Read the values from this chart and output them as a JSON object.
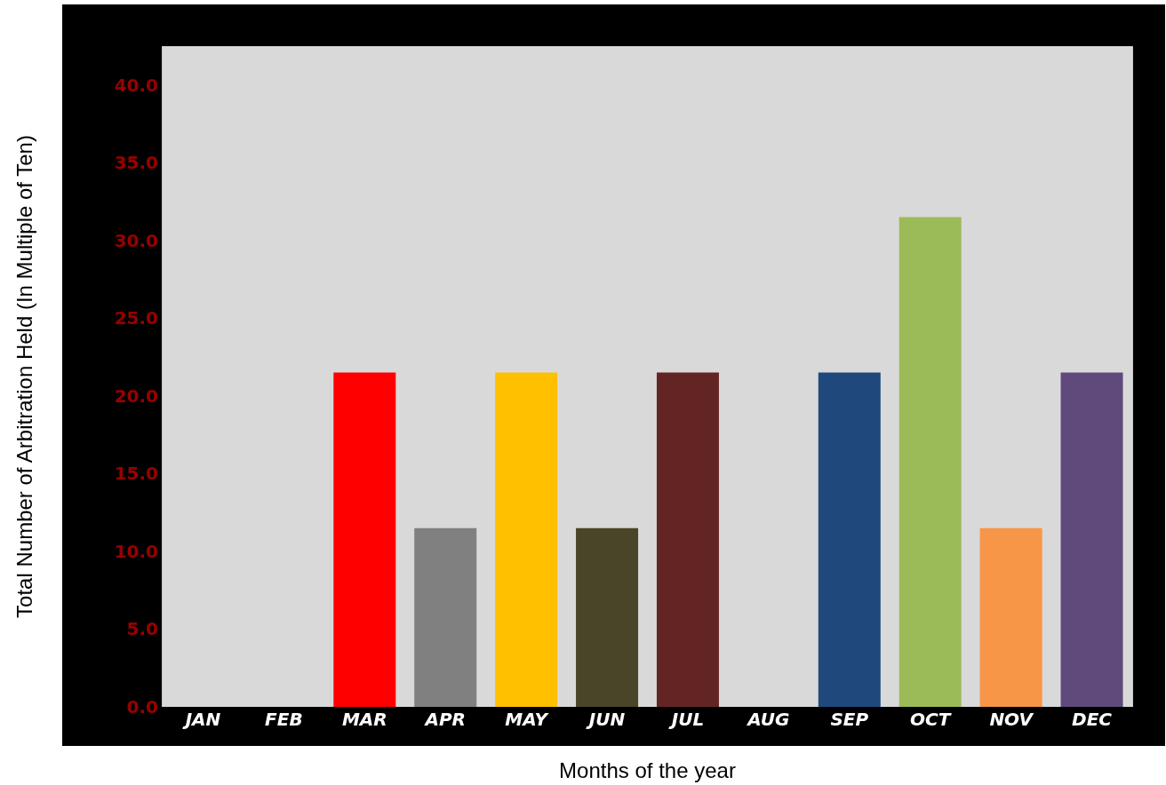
{
  "chart_data": {
    "type": "bar",
    "xlabel": "Months of the year",
    "ylabel": "Total Number of Arbitration Held (In Multiple of Ten)",
    "categories": [
      "JAN",
      "FEB",
      "MAR",
      "APR",
      "MAY",
      "JUN",
      "JUL",
      "AUG",
      "SEP",
      "OCT",
      "NOV",
      "DEC"
    ],
    "values": [
      0,
      0,
      21.5,
      11.5,
      21.5,
      11.5,
      21.5,
      0,
      21.5,
      31.5,
      11.5,
      21.5
    ],
    "colors": [
      "#d9d9d9",
      "#d9d9d9",
      "#ff0000",
      "#808080",
      "#ffc000",
      "#4a4529",
      "#632523",
      "#d9d9d9",
      "#1f497d",
      "#9bbb59",
      "#f79646",
      "#604a7b"
    ],
    "ylim": [
      0,
      42.5
    ],
    "yticks": [
      {
        "value": 0,
        "label": "0.0"
      },
      {
        "value": 5,
        "label": "5.0"
      },
      {
        "value": 10,
        "label": "10.0"
      },
      {
        "value": 15,
        "label": "15.0"
      },
      {
        "value": 20,
        "label": "20.0"
      },
      {
        "value": 25,
        "label": "25.0"
      },
      {
        "value": 30,
        "label": "30.0"
      },
      {
        "value": 35,
        "label": "35.0"
      },
      {
        "value": 40,
        "label": "40.0"
      }
    ],
    "grid": false,
    "legend": false
  }
}
